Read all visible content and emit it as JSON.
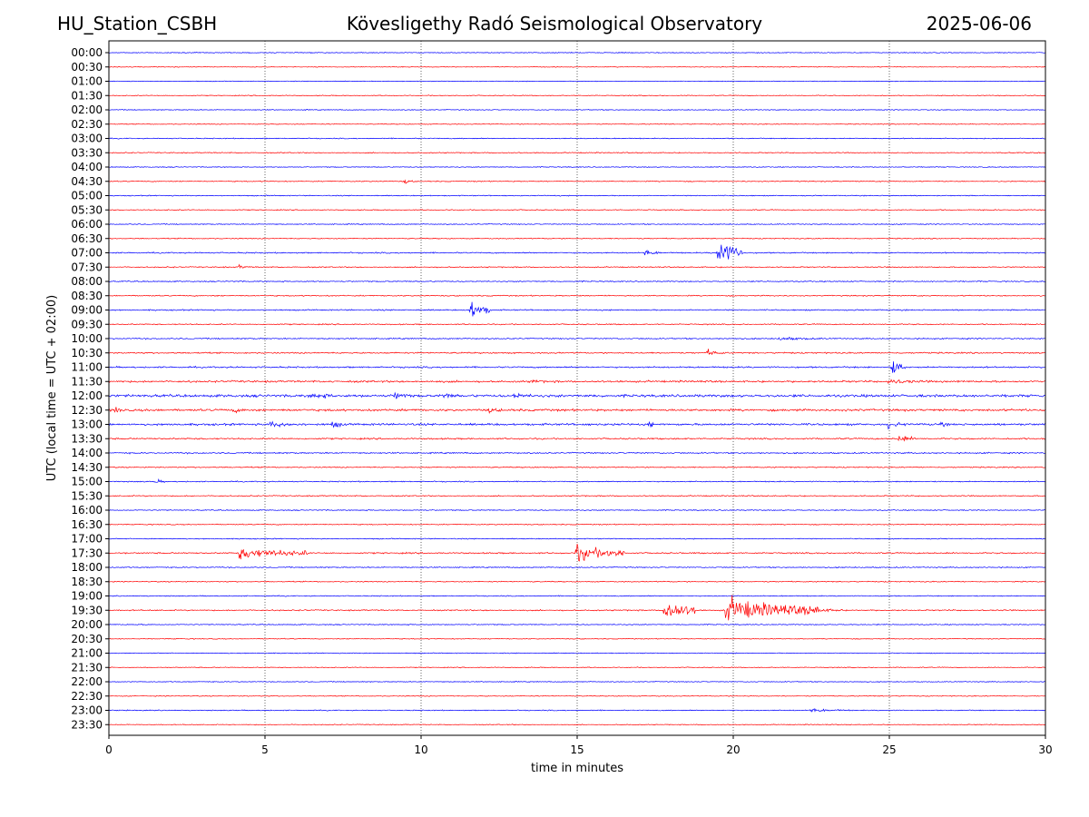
{
  "header": {
    "station": "HU_Station_CSBH",
    "observatory": "Kövesligethy Radó Seismological Observatory",
    "date": "2025-06-06"
  },
  "chart_data": {
    "type": "line",
    "title": "Kövesligethy Radó Seismological Observatory",
    "xlabel": "time in minutes",
    "ylabel": "UTC (local time = UTC + 02:00)",
    "xlim": [
      0,
      30
    ],
    "xticks": [
      "0",
      "5",
      "10",
      "15",
      "20",
      "25",
      "30"
    ],
    "xtick_values": [
      0,
      5,
      10,
      15,
      20,
      25,
      30
    ],
    "grid": "vertical dotted lines at 5-minute ticks",
    "colors": {
      "even_trace": "#0000ff",
      "odd_trace": "#ff0000"
    },
    "rows": [
      "00:00",
      "00:30",
      "01:00",
      "01:30",
      "02:00",
      "02:30",
      "03:00",
      "03:30",
      "04:00",
      "04:30",
      "05:00",
      "05:30",
      "06:00",
      "06:30",
      "07:00",
      "07:30",
      "08:00",
      "08:30",
      "09:00",
      "09:30",
      "10:00",
      "10:30",
      "11:00",
      "11:30",
      "12:00",
      "12:30",
      "13:00",
      "13:30",
      "14:00",
      "14:30",
      "15:00",
      "15:30",
      "16:00",
      "16:30",
      "17:00",
      "17:30",
      "18:00",
      "18:30",
      "19:00",
      "19:30",
      "20:00",
      "20:30",
      "21:00",
      "21:30",
      "22:00",
      "22:30",
      "23:00",
      "23:30"
    ],
    "noise_level": [
      0.6,
      0.5,
      0.5,
      0.6,
      0.6,
      0.6,
      0.7,
      0.7,
      0.6,
      0.7,
      0.7,
      0.7,
      0.7,
      0.7,
      0.9,
      0.8,
      0.8,
      0.8,
      0.9,
      0.8,
      0.9,
      1.0,
      1.1,
      1.4,
      1.8,
      1.6,
      1.5,
      1.1,
      1.0,
      0.8,
      0.8,
      0.8,
      0.7,
      0.7,
      0.7,
      1.0,
      0.8,
      0.7,
      0.7,
      0.9,
      0.7,
      0.6,
      0.6,
      0.6,
      0.6,
      0.6,
      0.7,
      0.6
    ],
    "events": [
      {
        "row": "04:30",
        "minute": 9.5,
        "amplitude": 2.5,
        "duration": 0.3
      },
      {
        "row": "07:00",
        "minute": 17.2,
        "amplitude": 3,
        "duration": 0.5
      },
      {
        "row": "07:00",
        "minute": 19.5,
        "amplitude": 14,
        "duration": 0.8
      },
      {
        "row": "07:30",
        "minute": 4.2,
        "amplitude": 2,
        "duration": 0.3
      },
      {
        "row": "09:00",
        "minute": 11.6,
        "amplitude": 9,
        "duration": 0.6
      },
      {
        "row": "10:00",
        "minute": 21.5,
        "amplitude": 2,
        "duration": 1.5
      },
      {
        "row": "10:30",
        "minute": 19.2,
        "amplitude": 3,
        "duration": 0.6
      },
      {
        "row": "11:00",
        "minute": 25.1,
        "amplitude": 8,
        "duration": 0.4
      },
      {
        "row": "11:30",
        "minute": 13.6,
        "amplitude": 3,
        "duration": 0.4
      },
      {
        "row": "11:30",
        "minute": 25.0,
        "amplitude": 3,
        "duration": 1.2
      },
      {
        "row": "12:00",
        "minute": 9.2,
        "amplitude": 6,
        "duration": 0.4
      },
      {
        "row": "12:00",
        "minute": 6.5,
        "amplitude": 3,
        "duration": 1.5
      },
      {
        "row": "12:00",
        "minute": 10.7,
        "amplitude": 3,
        "duration": 0.8
      },
      {
        "row": "12:00",
        "minute": 13.0,
        "amplitude": 3,
        "duration": 0.8
      },
      {
        "row": "12:30",
        "minute": 0.2,
        "amplitude": 4,
        "duration": 0.3
      },
      {
        "row": "12:30",
        "minute": 4.0,
        "amplitude": 3,
        "duration": 0.5
      },
      {
        "row": "12:30",
        "minute": 12.2,
        "amplitude": 3,
        "duration": 0.6
      },
      {
        "row": "13:00",
        "minute": 5.2,
        "amplitude": 3,
        "duration": 1.2
      },
      {
        "row": "13:00",
        "minute": 7.2,
        "amplitude": 4,
        "duration": 0.4
      },
      {
        "row": "13:00",
        "minute": 17.3,
        "amplitude": 4,
        "duration": 0.2
      },
      {
        "row": "13:00",
        "minute": 25.0,
        "amplitude": 4,
        "duration": 0.5
      },
      {
        "row": "13:00",
        "minute": 26.7,
        "amplitude": 2,
        "duration": 0.4
      },
      {
        "row": "13:30",
        "minute": 25.3,
        "amplitude": 4,
        "duration": 0.6
      },
      {
        "row": "15:00",
        "minute": 1.5,
        "amplitude": 2.5,
        "duration": 0.3
      },
      {
        "row": "17:30",
        "minute": 4.2,
        "amplitude": 6,
        "duration": 2.2
      },
      {
        "row": "17:30",
        "minute": 15.0,
        "amplitude": 8,
        "duration": 1.5
      },
      {
        "row": "19:30",
        "minute": 17.8,
        "amplitude": 12,
        "duration": 1.0
      },
      {
        "row": "19:30",
        "minute": 19.8,
        "amplitude": 12,
        "duration": 3.0
      },
      {
        "row": "19:30",
        "minute": 22.5,
        "amplitude": 3,
        "duration": 1.0
      },
      {
        "row": "23:00",
        "minute": 22.5,
        "amplitude": 2,
        "duration": 1.2
      }
    ]
  }
}
